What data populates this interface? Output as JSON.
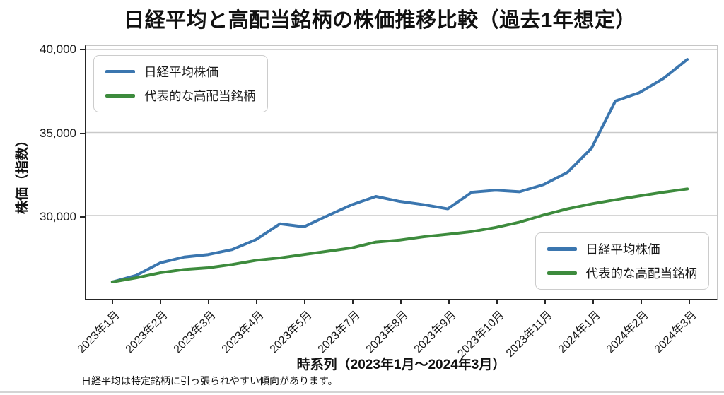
{
  "page": {
    "title": "日経平均と高配当銘柄の株価推移比較（過去1年想定）",
    "xlabel": "時系列（2023年1月〜2024年3月）",
    "ylabel": "株価（指数）",
    "footnote": "日経平均は特定銘柄に引っ張られやすい傾向があります。"
  },
  "legend": {
    "items": [
      {
        "label": "日経平均株価",
        "color": "#3b76af"
      },
      {
        "label": "代表的な高配当銘柄",
        "color": "#3d8b3d"
      }
    ],
    "positions": [
      "upper left",
      "lower right"
    ]
  },
  "colors": {
    "nikkei_line": "#3b76af",
    "dividend_line": "#3d8b3d",
    "gridline": "#c9c9c9",
    "spine_dark": "#262626",
    "spine_light": "#c6c6c6"
  },
  "chart_data": {
    "type": "line",
    "title": "日経平均と高配当銘柄の株価推移比較（過去1年想定）",
    "xlabel": "時系列（2023年1月〜2024年3月）",
    "ylabel": "株価（指数）",
    "grid": "horizontal-only",
    "legend_positions": [
      "upper left",
      "lower right"
    ],
    "x_tick_labels": [
      "2023年1月",
      "2023年2月",
      "2023年3月",
      "2023年4月",
      "2023年5月",
      "2023年7月",
      "2023年8月",
      "2023年9月",
      "2023年10月",
      "2023年11月",
      "2024年1月",
      "2024年2月",
      "2024年3月"
    ],
    "points_per_tick_interval": 2,
    "y_ticks": [
      30000,
      35000,
      40000
    ],
    "y_tick_labels": [
      "30,000",
      "35,000",
      "40,000"
    ],
    "ylim": [
      24980,
      40060
    ],
    "series": [
      {
        "name": "日経平均株価",
        "color": "#3b76af",
        "values": [
          26000,
          26400,
          27150,
          27500,
          27650,
          27950,
          28550,
          29500,
          29320,
          30000,
          30650,
          31150,
          30850,
          30650,
          30400,
          31400,
          31520,
          31430,
          31860,
          32600,
          34050,
          36900,
          37400,
          38250,
          39400
        ]
      },
      {
        "name": "代表的な高配当銘柄",
        "color": "#3d8b3d",
        "values": [
          26000,
          26250,
          26550,
          26750,
          26850,
          27050,
          27300,
          27450,
          27650,
          27850,
          28050,
          28400,
          28520,
          28720,
          28870,
          29030,
          29280,
          29600,
          30030,
          30400,
          30700,
          30950,
          31180,
          31400,
          31600
        ]
      }
    ]
  }
}
